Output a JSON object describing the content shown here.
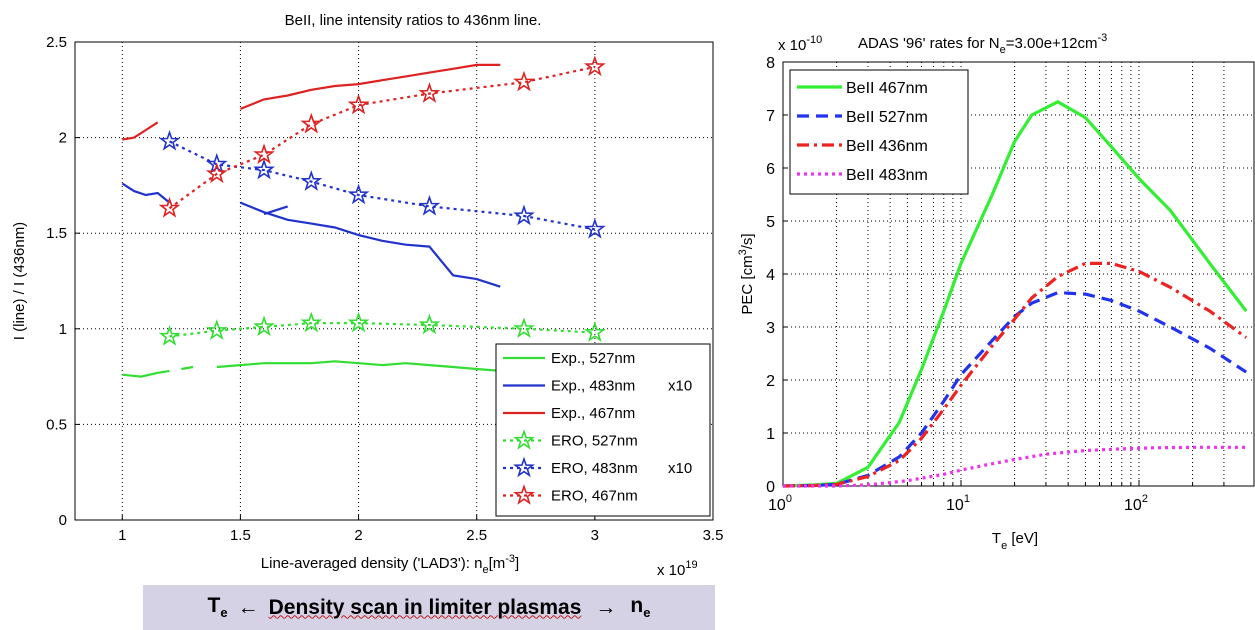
{
  "charts": [
    {
      "id": "left",
      "type": "line",
      "title": "BeII, line intensity ratios to 436nm line.",
      "xlabel": "Line-averaged density ('LAD3'): n",
      "xlabel_sub": "e",
      "xlabel_unit": "[m",
      "xlabel_sup": "-3",
      "xlabel_end": "]",
      "x_multiplier": "x 10",
      "x_multiplier_exp": "19",
      "ylabel": "I (line) / I (436nm)",
      "xlim": [
        0.8,
        3.5
      ],
      "ylim": [
        0,
        2.5
      ],
      "xticks": [
        "1",
        "1.5",
        "2",
        "2.5",
        "3",
        "3.5"
      ],
      "yticks": [
        "0",
        "0.5",
        "1",
        "1.5",
        "2",
        "2.5"
      ],
      "grid": true,
      "legend_position": "bottom-right",
      "legend": [
        {
          "label": "Exp., 527nm",
          "suffix": "",
          "color": "#33dd33",
          "style": "solid",
          "marker": "none"
        },
        {
          "label": "Exp., 483nm",
          "suffix": "x10",
          "color": "#2233cc",
          "style": "solid",
          "marker": "none"
        },
        {
          "label": "Exp., 467nm",
          "suffix": "",
          "color": "#dd2222",
          "style": "solid",
          "marker": "none"
        },
        {
          "label": "ERO, 527nm",
          "suffix": "",
          "color": "#33dd33",
          "style": "dotted",
          "marker": "star"
        },
        {
          "label": "ERO, 483nm",
          "suffix": "x10",
          "color": "#2233cc",
          "style": "dotted",
          "marker": "star"
        },
        {
          "label": "ERO, 467nm",
          "suffix": "",
          "color": "#dd2222",
          "style": "dotted",
          "marker": "star"
        }
      ],
      "series": [
        {
          "color": "#33dd33",
          "style": "solid",
          "segments": [
            {
              "x": [
                1.0,
                1.08,
                1.15,
                1.2
              ],
              "y": [
                0.76,
                0.75,
                0.77,
                0.78
              ]
            },
            {
              "x": [
                1.25,
                1.3
              ],
              "y": [
                0.79,
                0.8
              ]
            },
            {
              "x": [
                1.4,
                1.5,
                1.6,
                1.7,
                1.8,
                1.9,
                2.0,
                2.1,
                2.2,
                2.3,
                2.4,
                2.5,
                2.6
              ],
              "y": [
                0.8,
                0.81,
                0.82,
                0.82,
                0.82,
                0.83,
                0.82,
                0.81,
                0.82,
                0.81,
                0.8,
                0.79,
                0.78
              ]
            }
          ]
        },
        {
          "color": "#2233cc",
          "style": "solid",
          "segments": [
            {
              "x": [
                1.0,
                1.05,
                1.1,
                1.15,
                1.2
              ],
              "y": [
                1.76,
                1.72,
                1.7,
                1.71,
                1.66
              ]
            },
            {
              "x": [
                1.5,
                1.6,
                1.7,
                1.8,
                1.9,
                2.0,
                2.1,
                2.2,
                2.3,
                2.4,
                2.5,
                2.6
              ],
              "y": [
                1.66,
                1.61,
                1.57,
                1.55,
                1.53,
                1.49,
                1.46,
                1.44,
                1.43,
                1.28,
                1.26,
                1.22
              ]
            },
            {
              "x": [
                1.6,
                1.7
              ],
              "y": [
                1.6,
                1.64
              ]
            }
          ]
        },
        {
          "color": "#dd2222",
          "style": "solid",
          "segments": [
            {
              "x": [
                1.0,
                1.05,
                1.1,
                1.15
              ],
              "y": [
                1.99,
                2.0,
                2.04,
                2.08
              ]
            },
            {
              "x": [
                1.5,
                1.6,
                1.7,
                1.8,
                1.9,
                2.0,
                2.1,
                2.2,
                2.3,
                2.4,
                2.5,
                2.6
              ],
              "y": [
                2.15,
                2.2,
                2.22,
                2.25,
                2.27,
                2.28,
                2.3,
                2.32,
                2.34,
                2.36,
                2.38,
                2.38
              ]
            }
          ]
        },
        {
          "color": "#33dd33",
          "style": "dotted",
          "marker": "star",
          "x": [
            1.2,
            1.4,
            1.6,
            1.8,
            2.0,
            2.3,
            2.7,
            3.0
          ],
          "y": [
            0.96,
            0.99,
            1.01,
            1.03,
            1.03,
            1.02,
            1.0,
            0.98
          ]
        },
        {
          "color": "#2233cc",
          "style": "dotted",
          "marker": "star",
          "x": [
            1.2,
            1.4,
            1.6,
            1.8,
            2.0,
            2.3,
            2.7,
            3.0
          ],
          "y": [
            1.98,
            1.86,
            1.83,
            1.77,
            1.7,
            1.64,
            1.59,
            1.52
          ]
        },
        {
          "color": "#dd2222",
          "style": "dotted",
          "marker": "star",
          "x": [
            1.2,
            1.4,
            1.6,
            1.8,
            2.0,
            2.3,
            2.7,
            3.0
          ],
          "y": [
            1.63,
            1.81,
            1.91,
            2.07,
            2.17,
            2.23,
            2.29,
            2.37
          ]
        }
      ]
    },
    {
      "id": "right",
      "type": "line",
      "title": "ADAS  '96' rates for N",
      "title_sub": "e",
      "title_mid": "=3.00e+12cm",
      "title_sup": "-3",
      "y_multiplier": "x 10",
      "y_multiplier_exp": "-10",
      "xlabel": "T",
      "xlabel_sub": "e",
      "xlabel_end": " [eV]",
      "ylabel": "PEC [cm",
      "ylabel_sup": "3",
      "ylabel_end": "/s]",
      "x_scale": "log",
      "xlim": [
        1,
        400
      ],
      "ylim": [
        0,
        8
      ],
      "xticks": [
        {
          "base": "10",
          "exp": "0"
        },
        {
          "base": "10",
          "exp": "1"
        },
        {
          "base": "10",
          "exp": "2"
        }
      ],
      "yticks": [
        "0",
        "1",
        "2",
        "3",
        "4",
        "5",
        "6",
        "7",
        "8"
      ],
      "grid": true,
      "legend_position": "top-left",
      "legend": [
        {
          "label": "BeII 467nm",
          "color": "#33ee33",
          "style": "solid"
        },
        {
          "label": "BeII 527nm",
          "color": "#2233ee",
          "style": "dashed"
        },
        {
          "label": "BeII 436nm",
          "color": "#ee2222",
          "style": "dashdot"
        },
        {
          "label": "BeII 483nm",
          "color": "#ee33ee",
          "style": "dotted"
        }
      ],
      "series": [
        {
          "name": "BeII 467nm",
          "color": "#33ee33",
          "style": "solid",
          "x": [
            1,
            1.5,
            2,
            3,
            4.5,
            6,
            8,
            10,
            15,
            20,
            25,
            35,
            50,
            70,
            100,
            150,
            250,
            400
          ],
          "y": [
            0.0,
            0.02,
            0.05,
            0.35,
            1.2,
            2.2,
            3.3,
            4.2,
            5.5,
            6.5,
            7.0,
            7.25,
            6.95,
            6.4,
            5.8,
            5.2,
            4.2,
            3.3
          ]
        },
        {
          "name": "BeII 527nm",
          "color": "#2233ee",
          "style": "dashed",
          "x": [
            1,
            1.5,
            2,
            3,
            4.5,
            6,
            8,
            10,
            15,
            20,
            25,
            35,
            50,
            70,
            100,
            150,
            250,
            400
          ],
          "y": [
            0.0,
            0.01,
            0.03,
            0.2,
            0.55,
            1.0,
            1.6,
            2.1,
            2.75,
            3.2,
            3.45,
            3.65,
            3.62,
            3.5,
            3.3,
            3.0,
            2.6,
            2.15
          ]
        },
        {
          "name": "BeII 436nm",
          "color": "#ee2222",
          "style": "dashdot",
          "x": [
            1,
            1.5,
            2,
            3,
            4.5,
            6,
            8,
            10,
            15,
            20,
            25,
            35,
            50,
            70,
            100,
            150,
            250,
            400
          ],
          "y": [
            0.0,
            0.01,
            0.03,
            0.18,
            0.48,
            0.9,
            1.45,
            1.9,
            2.65,
            3.15,
            3.55,
            3.95,
            4.2,
            4.2,
            4.05,
            3.75,
            3.3,
            2.8
          ]
        },
        {
          "name": "BeII 483nm",
          "color": "#ee33ee",
          "style": "dotted",
          "x": [
            1,
            2,
            3,
            5,
            8,
            10,
            15,
            20,
            30,
            50,
            80,
            120,
            200,
            400
          ],
          "y": [
            0.0,
            0.0,
            0.02,
            0.1,
            0.22,
            0.3,
            0.42,
            0.5,
            0.6,
            0.67,
            0.7,
            0.72,
            0.73,
            0.73
          ]
        }
      ]
    }
  ],
  "banner": {
    "t_symbol": "T",
    "t_sub": "e",
    "left_arrow": "←",
    "text": "Density scan in limiter plasmas",
    "right_arrow": "→",
    "n_symbol": "n",
    "n_sub": "e"
  }
}
